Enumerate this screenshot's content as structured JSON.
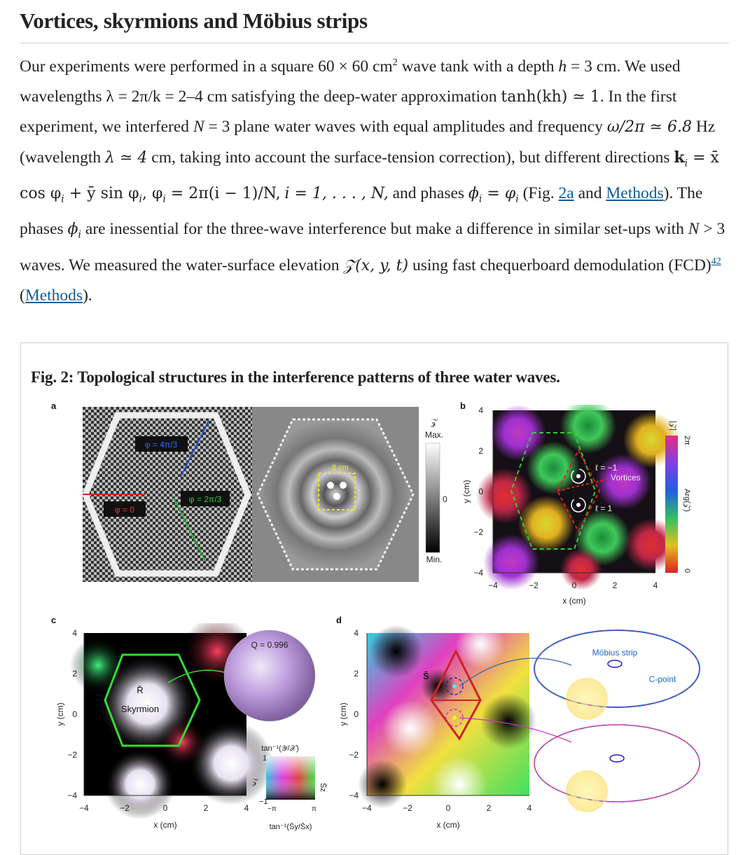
{
  "section": {
    "title": "Vortices, skyrmions and Möbius strips"
  },
  "paragraph": {
    "s1": "Our experiments were performed in a square 60 × 60 cm",
    "s1_sup": "2",
    "s2": " wave tank with a depth ",
    "h": "h",
    "s3": " = 3 cm. We used wavelengths ",
    "lambda_eq": "λ = 2π/k = 2–4 cm",
    "s4": " satisfying the deep-water approximation ",
    "tanh": "tanh(kh) ≃ 1",
    "s5": ". In the first experiment, we interfered ",
    "N3": "N",
    "s6": " = 3 plane water waves with equal amplitudes and frequency ",
    "freq": "ω/2π ≃ 6.8",
    "s7": " Hz (wavelength ",
    "lam4": "λ ≃ 4",
    "s8": " cm, taking into account the surface-tension correction), but different directions ",
    "kvec": "k",
    "ksub": "i",
    "kdef": " = x̄ cos φ",
    "kdef2": " + ȳ sin φ",
    "kdef3": ", φ",
    "kdef4": " = 2π(i − 1)/N,",
    "irange": "i = 1, . . . , N,",
    "s9": " and phases ",
    "phi_eq": "ϕ",
    "phi_eq2": " = φ",
    "s10": " (Fig. ",
    "link_2a": "2a",
    "s11": " and ",
    "link_methods": "Methods",
    "s12": "). The phases ",
    "phi_i": "ϕ",
    "s13": " are inessential for the three-wave interference but make a difference in similar set-ups with ",
    "N3b": "N",
    "s14": " > 3 waves. We measured the water-surface elevation ",
    "Zxyt": "𝒵(x, y, t)",
    "s15": " using fast chequerboard demodulation (FCD)",
    "ref": "42",
    "s16": " (",
    "link_methods2": "Methods",
    "s17": ")."
  },
  "figure": {
    "caption": "Fig. 2: Topological structures in the interference patterns of three water waves.",
    "panel_a": {
      "label": "a",
      "phi0": "φ = 0",
      "phi1": "φ = 2π/3",
      "phi2": "φ = 4π/3",
      "scale": "8 cm",
      "cb_title": "𝒵",
      "cb_max": "Max.",
      "cb_zero": "0",
      "cb_min": "Min."
    },
    "panel_b": {
      "label": "b",
      "ylabel": "y (cm)",
      "xlabel": "x (cm)",
      "ticks": [
        "−4",
        "−2",
        "0",
        "2",
        "4"
      ],
      "yticks": [
        "4",
        "2",
        "0",
        "−2",
        "−4"
      ],
      "l_minus": "ℓ = −1",
      "l_plus": "ℓ = 1",
      "vortices": "Vortices",
      "cb_top": "|𝒵|",
      "cb_right_top": "2π",
      "cb_right_bottom": "0",
      "cb_arg": "Arg(𝒵)"
    },
    "panel_c": {
      "label": "c",
      "ylabel": "y (cm)",
      "xlabel": "x (cm)",
      "ticks": [
        "−4",
        "−2",
        "0",
        "2",
        "4"
      ],
      "yticks": [
        "4",
        "2",
        "0",
        "−2",
        "−4"
      ],
      "R": "R̄",
      "skyrmion": "Skyrmion",
      "Q": "Q = 0.996",
      "legend_top": "tan⁻¹(𝒴/𝒳)",
      "legend_bottom": "tan⁻¹(S̄y/S̄x)",
      "leg_1": "1",
      "leg_m1": "−1",
      "leg_mpi": "−π",
      "leg_pi": "π",
      "leg_z": "𝒵̄",
      "leg_sz": "S̄z"
    },
    "panel_d": {
      "label": "d",
      "ylabel": "y (cm)",
      "xlabel": "x (cm)",
      "ticks": [
        "−4",
        "−2",
        "0",
        "2",
        "4"
      ],
      "yticks": [
        "4",
        "2",
        "0",
        "−2",
        "−4"
      ],
      "S": "S̄",
      "mobius": "Möbius strip",
      "cpoint": "C-point"
    }
  },
  "colors": {
    "link": "#0d5b9c",
    "heading": "#222222",
    "rule": "#cccccc"
  }
}
